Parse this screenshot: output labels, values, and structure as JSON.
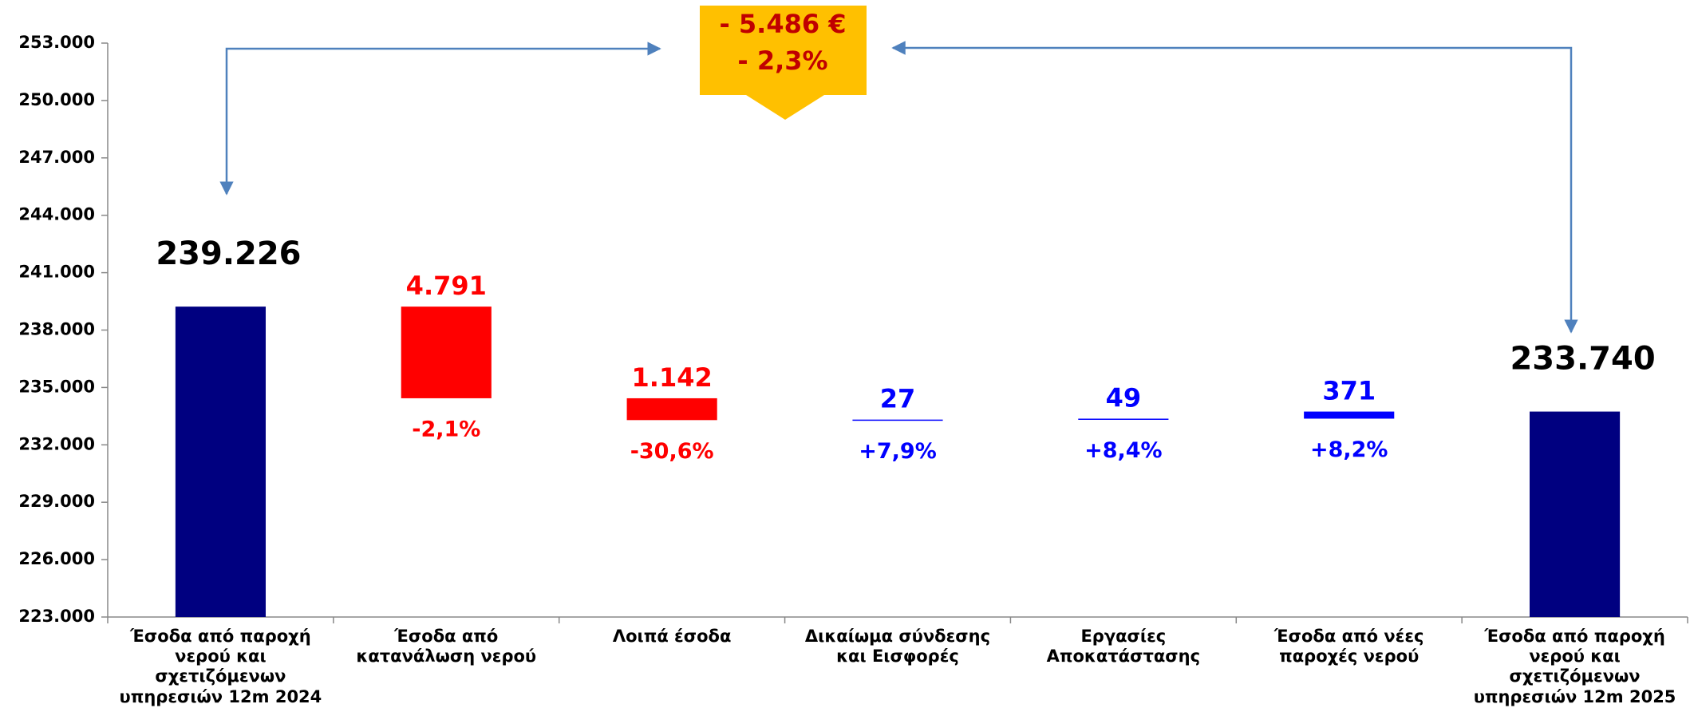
{
  "chart_data": {
    "type": "waterfall",
    "categories": [
      "Έσοδα από παροχή νερού και σχετιζόμενων υπηρεσιών 12m 2024",
      "Έσοδα από κατανάλωση νερού",
      "Λοιπά έσοδα",
      "Δικαίωμα σύνδεσης και Εισφορές",
      "Εργασίες Αποκατάστασης",
      "Έσοδα από νέες παροχές νερού",
      "Έσοδα από παροχή νερού και σχετιζόμενων υπηρεσιών  12m 2025"
    ],
    "values": [
      239226,
      -4791,
      -1142,
      27,
      49,
      371,
      233740
    ],
    "value_labels": [
      "239.226",
      "4.791",
      "1.142",
      "27",
      "49",
      "371",
      "233.740"
    ],
    "change_labels": [
      null,
      "-2,1%",
      "-30,6%",
      "+7,9%",
      "+8,4%",
      "+8,2%",
      null
    ],
    "colors": [
      "#000080",
      "#ff0000",
      "#ff0000",
      "#0000ff",
      "#0000ff",
      "#0000ff",
      "#000080"
    ],
    "label_colors": [
      "#000000",
      "#ff0000",
      "#ff0000",
      "#0000ff",
      "#0000ff",
      "#0000ff",
      "#000000"
    ],
    "ylim": [
      223000,
      253000
    ],
    "yticks": [
      {
        "value": 223000,
        "label": "223.000"
      },
      {
        "value": 226000,
        "label": "226.000"
      },
      {
        "value": 229000,
        "label": "229.000"
      },
      {
        "value": 232000,
        "label": "232.000"
      },
      {
        "value": 235000,
        "label": "235.000"
      },
      {
        "value": 238000,
        "label": "238.000"
      },
      {
        "value": 241000,
        "label": "241.000"
      },
      {
        "value": 244000,
        "label": "244.000"
      },
      {
        "value": 247000,
        "label": "247.000"
      },
      {
        "value": 250000,
        "label": "250.000"
      },
      {
        "value": 253000,
        "label": "253.000"
      }
    ],
    "callout": {
      "lines": [
        "- 5.486 €",
        "- 2,3%"
      ],
      "color": "#ffc000",
      "text_color": "#c00000"
    }
  }
}
